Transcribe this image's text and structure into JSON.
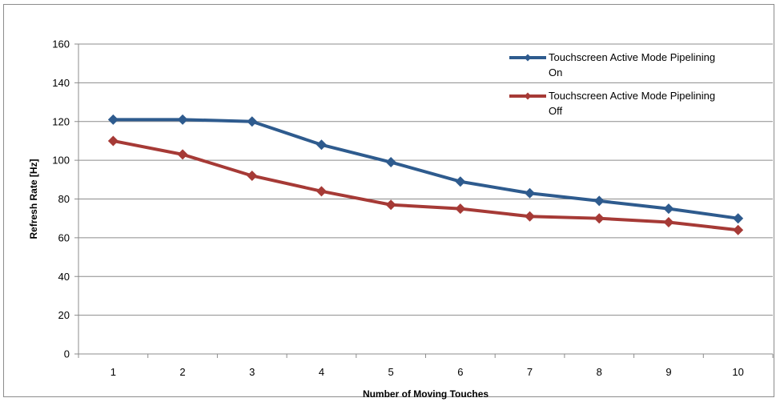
{
  "chart_data": {
    "type": "line",
    "title": "",
    "xlabel": "Number of Moving Touches",
    "ylabel": "Refresh Rate [Hz]",
    "x": [
      1,
      2,
      3,
      4,
      5,
      6,
      7,
      8,
      9,
      10
    ],
    "ylim": [
      0,
      160
    ],
    "yticks": [
      0,
      20,
      40,
      60,
      80,
      100,
      120,
      140,
      160
    ],
    "grid": true,
    "legend_position": "top-right",
    "series": [
      {
        "name": "Touchscreen Active Mode Pipelining On",
        "legend_lines": [
          "Touchscreen Active Mode Pipelining",
          "On"
        ],
        "color": "#2e5b8e",
        "marker": "diamond",
        "values": [
          121,
          121,
          120,
          108,
          99,
          89,
          83,
          79,
          75,
          70
        ]
      },
      {
        "name": "Touchscreen Active Mode Pipelining Off",
        "legend_lines": [
          "Touchscreen Active Mode Pipelining",
          "Off"
        ],
        "color": "#a63a36",
        "marker": "diamond",
        "values": [
          110,
          103,
          92,
          84,
          77,
          75,
          71,
          70,
          68,
          64
        ]
      }
    ]
  }
}
